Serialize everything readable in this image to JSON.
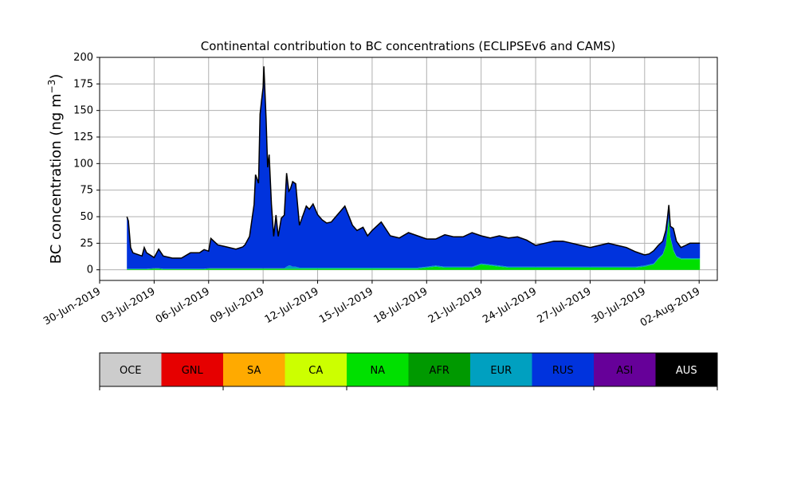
{
  "chart_data": {
    "type": "area",
    "title": "Continental contribution to BC concentrations (ECLIPSEv6 and CAMS)",
    "ylabel_main": "BC concentration (ng m",
    "ylabel_exp": "−3",
    "ylabel_close": ")",
    "xlabel": "",
    "ylim": [
      -10,
      200
    ],
    "yticks": [
      0,
      25,
      50,
      75,
      100,
      125,
      150,
      175,
      200
    ],
    "ytick_labels": [
      "0",
      "25",
      "50",
      "75",
      "100",
      "125",
      "150",
      "175",
      "200"
    ],
    "xlim": [
      "2019-06-30T00:00",
      "2019-08-03T00:00"
    ],
    "xticks": [
      "2019-06-30",
      "2019-07-03",
      "2019-07-06",
      "2019-07-09",
      "2019-07-12",
      "2019-07-15",
      "2019-07-18",
      "2019-07-21",
      "2019-07-24",
      "2019-07-27",
      "2019-07-30",
      "2019-08-02"
    ],
    "xtick_labels": [
      "30-Jun-2019",
      "03-Jul-2019",
      "06-Jul-2019",
      "09-Jul-2019",
      "12-Jul-2019",
      "15-Jul-2019",
      "18-Jul-2019",
      "21-Jul-2019",
      "24-Jul-2019",
      "27-Jul-2019",
      "30-Jul-2019",
      "02-Aug-2019"
    ],
    "grid": true,
    "x": [
      "2019-07-01T12:00",
      "2019-07-01T14:00",
      "2019-07-01T17:00",
      "2019-07-01T20:00",
      "2019-07-02T00:00",
      "2019-07-02T08:00",
      "2019-07-02T11:00",
      "2019-07-02T14:00",
      "2019-07-03T00:00",
      "2019-07-03T06:00",
      "2019-07-03T12:00",
      "2019-07-04T00:00",
      "2019-07-04T12:00",
      "2019-07-05T00:00",
      "2019-07-05T12:00",
      "2019-07-05T18:00",
      "2019-07-06T00:00",
      "2019-07-06T03:00",
      "2019-07-06T12:00",
      "2019-07-07T00:00",
      "2019-07-07T12:00",
      "2019-07-07T21:00",
      "2019-07-08T00:00",
      "2019-07-08T06:00",
      "2019-07-08T12:00",
      "2019-07-08T14:00",
      "2019-07-08T18:00",
      "2019-07-08T20:00",
      "2019-07-08T22:00",
      "2019-07-09T00:00",
      "2019-07-09T01:00",
      "2019-07-09T04:00",
      "2019-07-09T06:00",
      "2019-07-09T08:00",
      "2019-07-09T11:00",
      "2019-07-09T14:00",
      "2019-07-09T17:00",
      "2019-07-09T20:00",
      "2019-07-10T00:00",
      "2019-07-10T04:00",
      "2019-07-10T07:00",
      "2019-07-10T10:00",
      "2019-07-10T12:00",
      "2019-07-10T15:00",
      "2019-07-10T19:00",
      "2019-07-11T00:00",
      "2019-07-11T05:00",
      "2019-07-11T09:00",
      "2019-07-11T13:00",
      "2019-07-11T18:00",
      "2019-07-12T00:00",
      "2019-07-12T06:00",
      "2019-07-12T12:00",
      "2019-07-12T18:00",
      "2019-07-13T00:00",
      "2019-07-13T12:00",
      "2019-07-13T22:00",
      "2019-07-14T04:00",
      "2019-07-14T12:00",
      "2019-07-14T18:00",
      "2019-07-15T00:00",
      "2019-07-15T12:00",
      "2019-07-16T00:00",
      "2019-07-16T12:00",
      "2019-07-17T00:00",
      "2019-07-17T12:00",
      "2019-07-18T00:00",
      "2019-07-18T12:00",
      "2019-07-19T00:00",
      "2019-07-19T12:00",
      "2019-07-20T00:00",
      "2019-07-20T12:00",
      "2019-07-21T00:00",
      "2019-07-21T12:00",
      "2019-07-22T00:00",
      "2019-07-22T12:00",
      "2019-07-23T00:00",
      "2019-07-23T12:00",
      "2019-07-24T00:00",
      "2019-07-24T12:00",
      "2019-07-25T00:00",
      "2019-07-25T12:00",
      "2019-07-26T00:00",
      "2019-07-26T12:00",
      "2019-07-27T00:00",
      "2019-07-27T12:00",
      "2019-07-28T00:00",
      "2019-07-28T12:00",
      "2019-07-29T00:00",
      "2019-07-29T12:00",
      "2019-07-30T00:00",
      "2019-07-30T06:00",
      "2019-07-30T12:00",
      "2019-07-30T18:00",
      "2019-07-31T00:00",
      "2019-07-31T04:00",
      "2019-07-31T06:00",
      "2019-07-31T08:00",
      "2019-07-31T10:00",
      "2019-07-31T14:00",
      "2019-07-31T18:00",
      "2019-08-01T00:00",
      "2019-08-01T06:00",
      "2019-08-01T12:00",
      "2019-08-01T18:00",
      "2019-08-02T00:00",
      "2019-08-02T01:00"
    ],
    "series": [
      {
        "name": "NA",
        "color": "#00e000",
        "values": [
          0.5,
          0.5,
          0.5,
          0.5,
          0.5,
          0.5,
          0.5,
          0.5,
          1,
          1,
          0.5,
          0.5,
          0.5,
          0.5,
          0.5,
          0.5,
          1,
          1,
          1,
          1,
          1,
          1,
          1,
          1,
          1,
          1,
          1,
          1,
          1,
          1,
          1,
          1,
          1,
          1,
          1,
          1,
          1,
          1,
          1,
          1,
          1,
          1,
          1,
          1,
          1,
          1,
          1,
          1,
          1,
          1,
          1,
          1,
          1,
          1,
          1,
          1,
          1,
          1,
          1,
          1,
          1,
          1,
          1,
          1,
          1,
          1,
          2,
          3,
          2,
          2,
          2,
          2,
          5,
          4,
          3,
          2,
          2,
          2,
          2,
          2,
          2,
          2,
          2,
          2,
          2,
          2,
          2,
          2,
          2,
          2,
          3,
          4,
          5,
          10,
          14,
          22,
          35,
          48,
          30,
          18,
          12,
          10,
          10,
          10,
          10,
          10,
          10
        ]
      },
      {
        "name": "EUR",
        "color": "#00a0c0",
        "values": [
          0.5,
          0.5,
          0.5,
          0.5,
          0.5,
          0.5,
          0.5,
          0.5,
          0.5,
          0.5,
          0.5,
          0.5,
          0.5,
          0.5,
          0.5,
          0.5,
          0.5,
          0.5,
          0.5,
          0.5,
          0.5,
          0.5,
          0.5,
          0.5,
          0.5,
          0.5,
          0.5,
          0.5,
          0.5,
          0.5,
          0.5,
          0.5,
          0.5,
          0.5,
          0.5,
          0.5,
          0.5,
          0.5,
          0.5,
          0.5,
          2,
          3,
          3,
          2,
          2,
          1,
          1,
          1,
          1,
          1,
          1,
          1,
          1,
          1,
          1,
          1,
          1,
          1,
          1,
          1,
          1,
          1,
          1,
          1,
          1,
          1,
          1,
          1,
          1,
          1,
          1,
          1,
          1,
          1,
          1,
          1,
          1,
          1,
          1,
          1,
          1,
          1,
          1,
          1,
          1,
          1,
          1,
          1,
          1,
          1,
          1,
          1,
          1,
          1,
          1,
          1,
          1,
          1,
          1,
          1,
          1,
          1,
          1,
          1,
          1,
          1,
          1
        ]
      },
      {
        "name": "RUS",
        "color": "#0033dd",
        "values": [
          49,
          45,
          20,
          15,
          14,
          12,
          20,
          15,
          10,
          18,
          12,
          10,
          10,
          15,
          15,
          18,
          16,
          28,
          22,
          20,
          18,
          20,
          22,
          30,
          60,
          88,
          80,
          145,
          158,
          170,
          190,
          140,
          95,
          107,
          60,
          30,
          50,
          30,
          47,
          50,
          88,
          70,
          72,
          80,
          78,
          40,
          50,
          58,
          55,
          60,
          50,
          45,
          42,
          43,
          48,
          58,
          40,
          35,
          38,
          30,
          35,
          43,
          30,
          28,
          33,
          30,
          26,
          25,
          30,
          28,
          28,
          32,
          26,
          25,
          28,
          27,
          28,
          25,
          20,
          22,
          24,
          24,
          22,
          20,
          18,
          20,
          22,
          20,
          18,
          14,
          10,
          10,
          12,
          12,
          12,
          14,
          12,
          12,
          10,
          20,
          14,
          10,
          12,
          14,
          14,
          14,
          14
        ]
      }
    ],
    "legend": {
      "placement": "below",
      "entries": [
        {
          "label": "OCE",
          "color": "#cccccc"
        },
        {
          "label": "GNL",
          "color": "#e60000"
        },
        {
          "label": "SA",
          "color": "#ffaa00"
        },
        {
          "label": "CA",
          "color": "#ccff00"
        },
        {
          "label": "NA",
          "color": "#00e000"
        },
        {
          "label": "AFR",
          "color": "#009900"
        },
        {
          "label": "EUR",
          "color": "#00a0c0"
        },
        {
          "label": "RUS",
          "color": "#0033dd"
        },
        {
          "label": "ASI",
          "color": "#660099"
        },
        {
          "label": "AUS",
          "color": "#000000",
          "text_color": "#ffffff"
        }
      ]
    }
  }
}
